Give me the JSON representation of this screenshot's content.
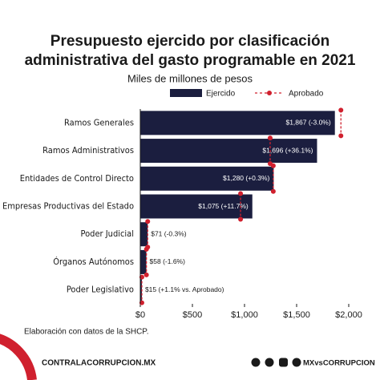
{
  "chart_data": {
    "type": "bar",
    "orientation": "horizontal",
    "title": [
      "Presupuesto ejercido por clasificación",
      "administrativa del gasto programable en 2021"
    ],
    "subtitle": "Miles de millones de pesos",
    "categories": [
      "Ramos Generales",
      "Ramos Administrativos",
      "Entidades de Control Directo",
      "Empresas Productivas del Estado",
      "Poder Judicial",
      "Órganos Autónomos",
      "Poder Legislativo"
    ],
    "series": [
      {
        "name": "Ejercido",
        "color": "#1b1e3f",
        "values": [
          1867,
          1696,
          1280,
          1075,
          71,
          58,
          15
        ],
        "value_labels": [
          "$1,867 (-3.0%)",
          "$1,696 (+36.1%)",
          "$1,280 (+0.3%)",
          "$1,075 (+11.7%)",
          "$71 (-0.3%)",
          "$58 (-1.6%)",
          "$15 (+1.1% vs. Aprobado)"
        ]
      },
      {
        "name": "Aprobado",
        "color": "#d0202e",
        "values": [
          1925,
          1246,
          1276,
          962,
          71,
          59,
          15
        ]
      }
    ],
    "xlim": [
      0,
      2000
    ],
    "xticks": [
      {
        "value": 0,
        "label": "$0"
      },
      {
        "value": 500,
        "label": "$500"
      },
      {
        "value": 1000,
        "label": "$1,000"
      },
      {
        "value": 1500,
        "label": "$1,500"
      },
      {
        "value": 2000,
        "label": "$2,000"
      }
    ],
    "grid": false,
    "legend": "top",
    "source": "Elaboración con datos de la SHCP.",
    "website": "CONTRALACORRUPCION.MX",
    "handle": "MXvsCORRUPCION"
  }
}
